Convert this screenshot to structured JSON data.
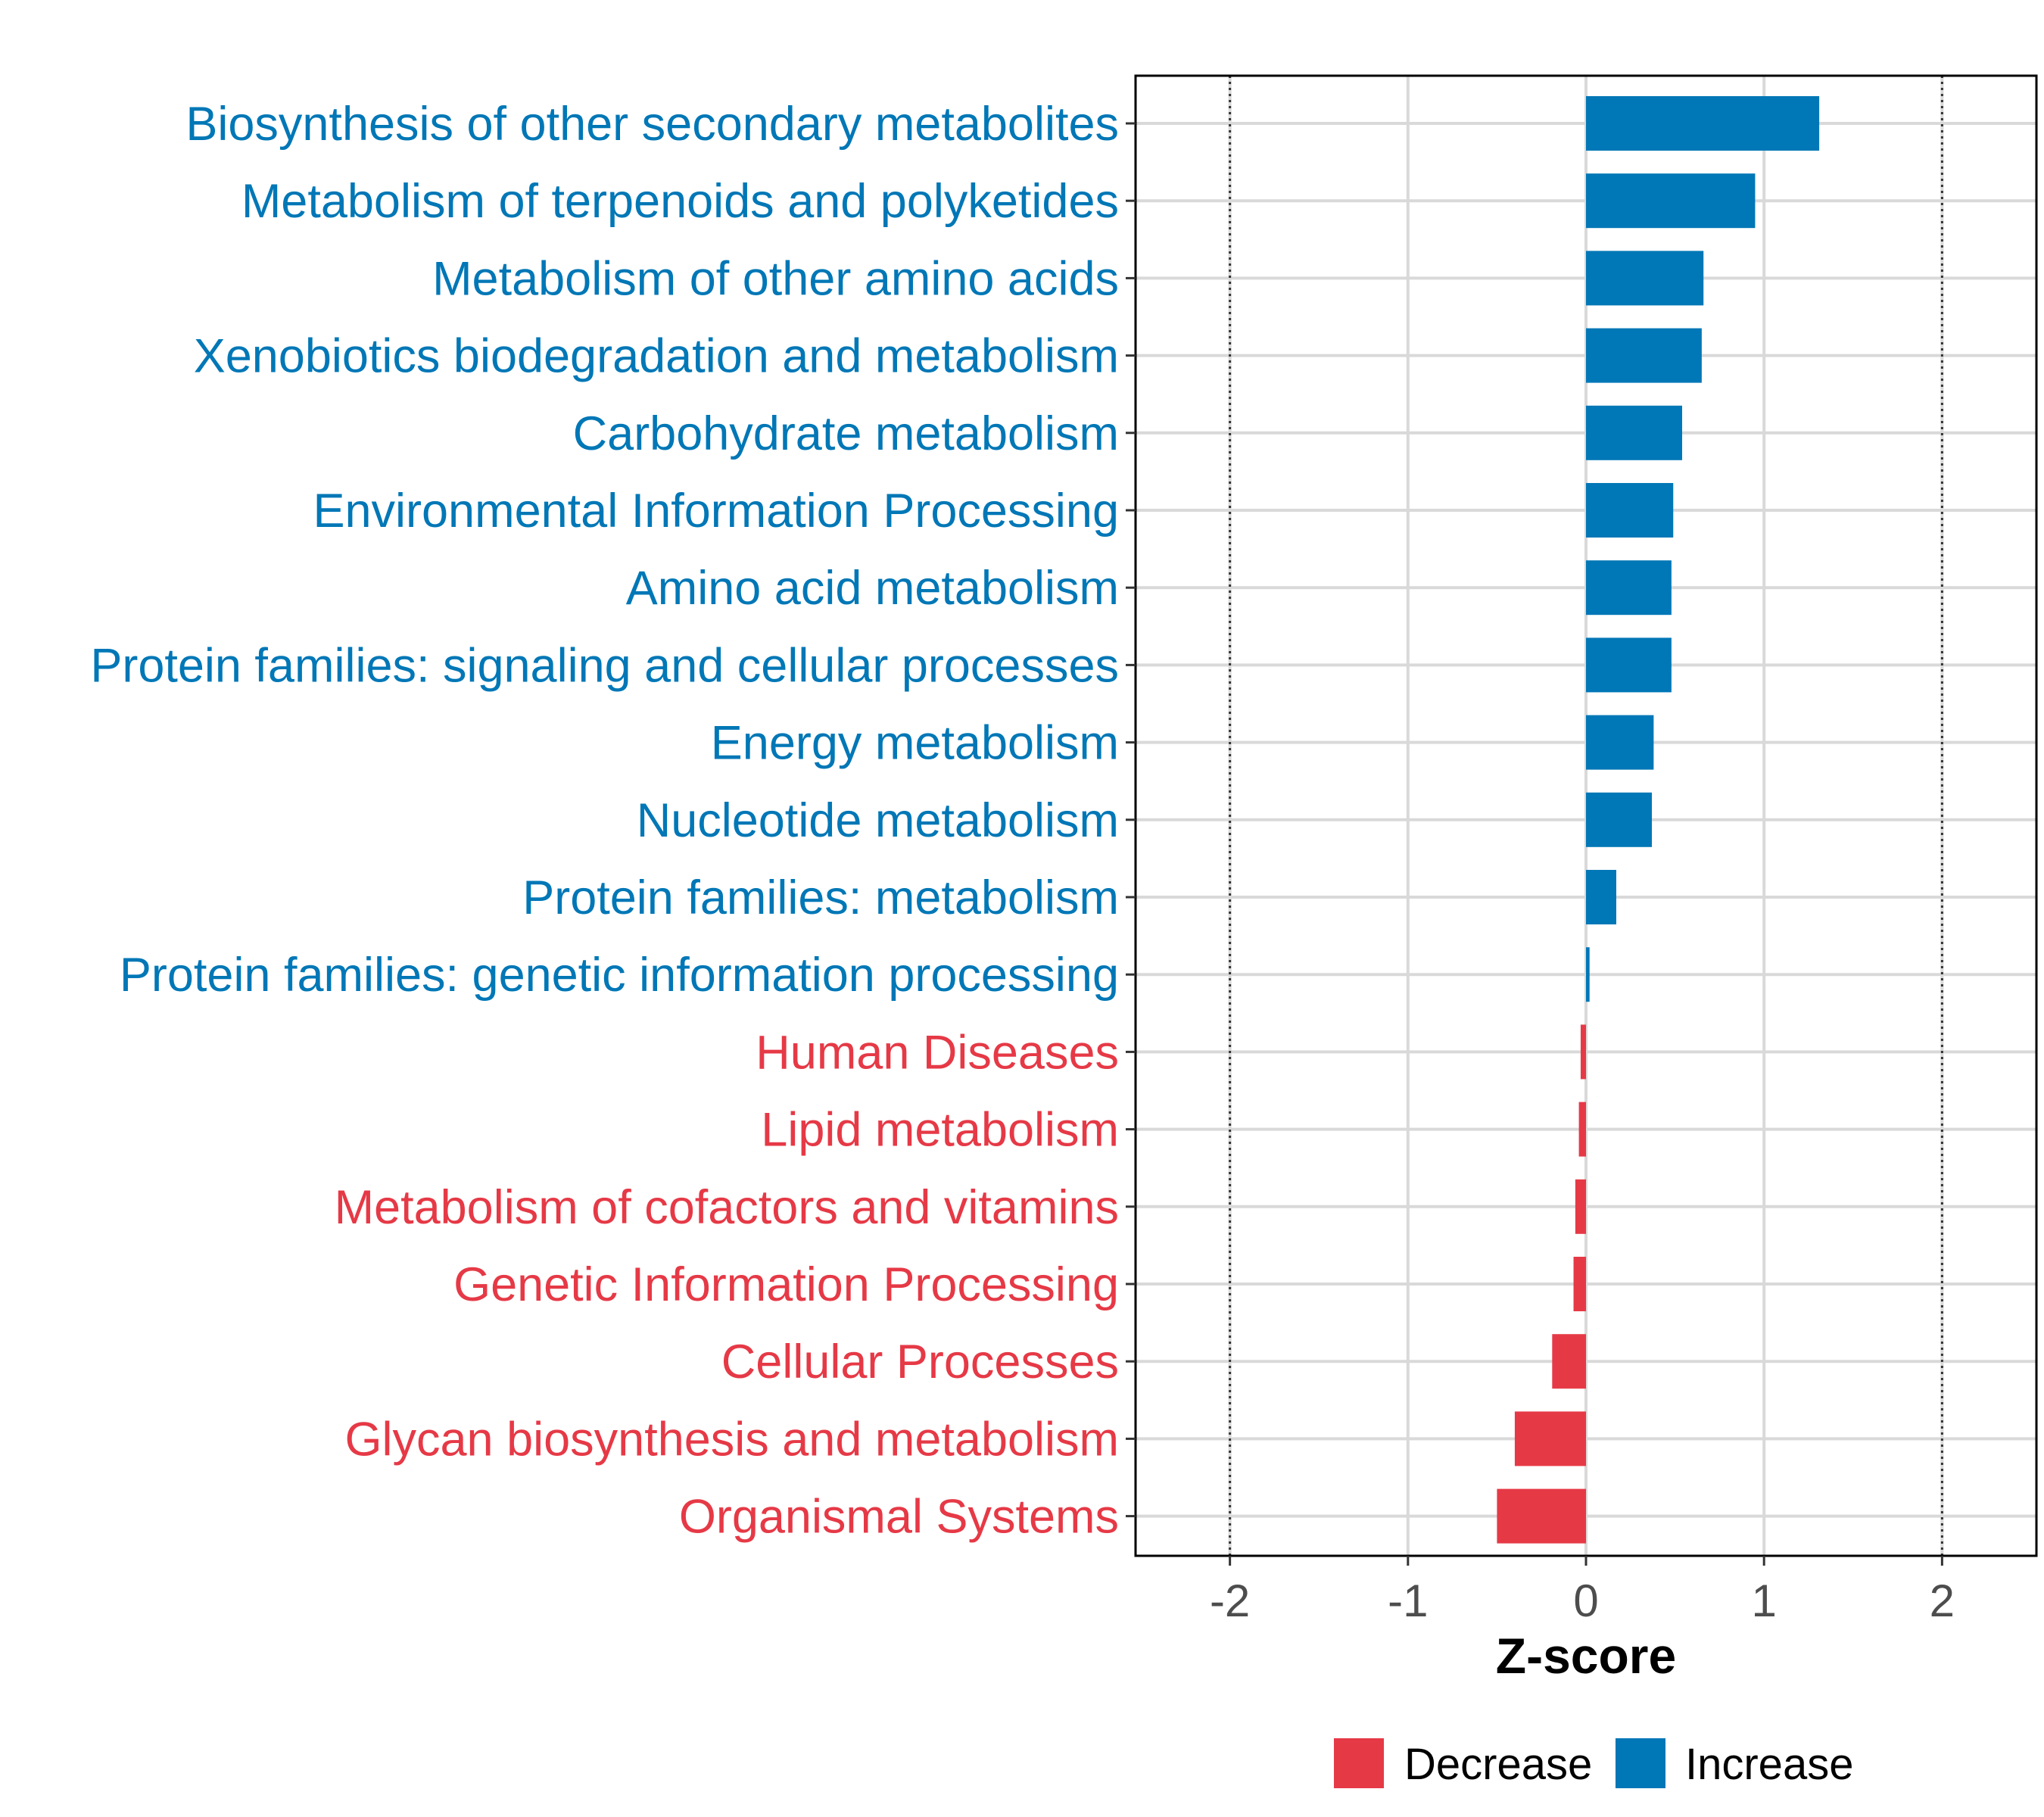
{
  "chart_data": {
    "type": "bar",
    "orientation": "horizontal",
    "xlabel": "Z-score",
    "xlim": [
      -2.53,
      2.53
    ],
    "xticks": [
      -2,
      -1,
      0,
      1,
      2
    ],
    "xtick_labels": [
      "-2",
      "-1",
      "0",
      "1",
      "2"
    ],
    "reference_lines": [
      -2,
      2
    ],
    "grid": true,
    "colors": {
      "Increase": "#0077b6",
      "Decrease": "#e63946"
    },
    "legend": {
      "position": "bottom",
      "entries": [
        {
          "label": "Decrease",
          "color": "#e63946"
        },
        {
          "label": "Increase",
          "color": "#0077b6"
        }
      ]
    },
    "bars": [
      {
        "category": "Biosynthesis of other secondary metabolites",
        "value": 1.31,
        "group": "Increase"
      },
      {
        "category": "Metabolism of terpenoids and polyketides",
        "value": 0.95,
        "group": "Increase"
      },
      {
        "category": "Metabolism of other amino acids",
        "value": 0.66,
        "group": "Increase"
      },
      {
        "category": "Xenobiotics biodegradation and metabolism",
        "value": 0.65,
        "group": "Increase"
      },
      {
        "category": "Carbohydrate metabolism",
        "value": 0.54,
        "group": "Increase"
      },
      {
        "category": "Environmental Information Processing",
        "value": 0.49,
        "group": "Increase"
      },
      {
        "category": "Amino acid metabolism",
        "value": 0.48,
        "group": "Increase"
      },
      {
        "category": "Protein families: signaling and cellular processes",
        "value": 0.48,
        "group": "Increase"
      },
      {
        "category": "Energy metabolism",
        "value": 0.38,
        "group": "Increase"
      },
      {
        "category": "Nucleotide metabolism",
        "value": 0.37,
        "group": "Increase"
      },
      {
        "category": "Protein families: metabolism",
        "value": 0.17,
        "group": "Increase"
      },
      {
        "category": "Protein families: genetic information processing",
        "value": 0.02,
        "group": "Increase"
      },
      {
        "category": "Human Diseases",
        "value": -0.03,
        "group": "Decrease"
      },
      {
        "category": "Lipid metabolism",
        "value": -0.04,
        "group": "Decrease"
      },
      {
        "category": "Metabolism of cofactors and vitamins",
        "value": -0.06,
        "group": "Decrease"
      },
      {
        "category": "Genetic Information Processing",
        "value": -0.07,
        "group": "Decrease"
      },
      {
        "category": "Cellular Processes",
        "value": -0.19,
        "group": "Decrease"
      },
      {
        "category": "Glycan biosynthesis and metabolism",
        "value": -0.4,
        "group": "Decrease"
      },
      {
        "category": "Organismal Systems",
        "value": -0.5,
        "group": "Decrease"
      }
    ]
  }
}
